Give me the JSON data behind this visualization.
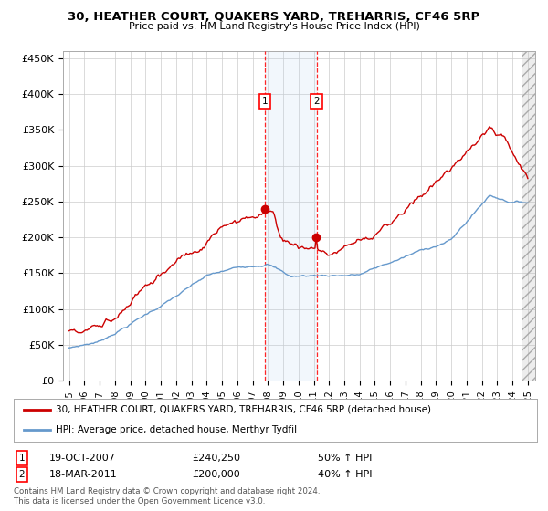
{
  "title": "30, HEATHER COURT, QUAKERS YARD, TREHARRIS, CF46 5RP",
  "subtitle": "Price paid vs. HM Land Registry's House Price Index (HPI)",
  "ylim": [
    0,
    460000
  ],
  "xlim_start": 1994.6,
  "xlim_end": 2025.5,
  "yticks": [
    0,
    50000,
    100000,
    150000,
    200000,
    250000,
    300000,
    350000,
    400000,
    450000
  ],
  "ytick_labels": [
    "£0",
    "£50K",
    "£100K",
    "£150K",
    "£200K",
    "£250K",
    "£300K",
    "£350K",
    "£400K",
    "£450K"
  ],
  "xtick_labels": [
    "1995",
    "1996",
    "1997",
    "1998",
    "1999",
    "2000",
    "2001",
    "2002",
    "2003",
    "2004",
    "2005",
    "2006",
    "2007",
    "2008",
    "2009",
    "2010",
    "2011",
    "2012",
    "2013",
    "2014",
    "2015",
    "2016",
    "2017",
    "2018",
    "2019",
    "2020",
    "2021",
    "2022",
    "2023",
    "2024",
    "2025"
  ],
  "line1_color": "#cc0000",
  "line2_color": "#6699cc",
  "line1_label": "30, HEATHER COURT, QUAKERS YARD, TREHARRIS, CF46 5RP (detached house)",
  "line2_label": "HPI: Average price, detached house, Merthyr Tydfil",
  "sale1_x": 2007.8,
  "sale1_y": 240250,
  "sale2_x": 2011.2,
  "sale2_y": 200000,
  "annotation1_date": "19-OCT-2007",
  "annotation1_price": "£240,250",
  "annotation1_hpi": "50% ↑ HPI",
  "annotation2_date": "18-MAR-2011",
  "annotation2_price": "£200,000",
  "annotation2_hpi": "40% ↑ HPI",
  "footnote1": "Contains HM Land Registry data © Crown copyright and database right 2024.",
  "footnote2": "This data is licensed under the Open Government Licence v3.0.",
  "background_color": "#ffffff",
  "grid_color": "#cccccc",
  "shade_color": "#ddeeff"
}
